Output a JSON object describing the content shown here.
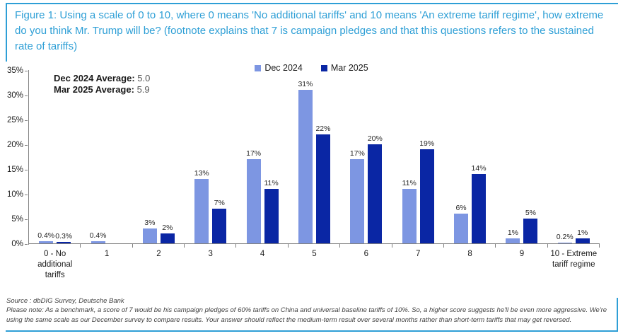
{
  "title": "Figure 1: Using a scale of 0 to 10, where 0 means 'No additional tariffs' and 10 means 'An extreme tariff regime', how extreme do you think Mr. Trump will be? (footnote explains that 7 is campaign pledges and that this questions refers to the sustained rate of tariffs)",
  "averages": {
    "dec_label": "Dec 2024 Average:",
    "dec_value": "5.0",
    "mar_label": "Mar 2025 Average:",
    "mar_value": "5.9"
  },
  "chart_data": {
    "type": "bar",
    "title": "Figure 1: Using a scale of 0 to 10, where 0 means 'No additional tariffs' and 10 means 'An extreme tariff regime', how extreme do you think Mr. Trump will be?",
    "categories": [
      "0 - No\nadditional\ntariffs",
      "1",
      "2",
      "3",
      "4",
      "5",
      "6",
      "7",
      "8",
      "9",
      "10 - Extreme\ntariff regime"
    ],
    "series": [
      {
        "name": "Dec 2024",
        "color": "#7D96E2",
        "values": [
          0.4,
          0.4,
          3,
          13,
          17,
          31,
          17,
          11,
          6,
          1,
          0.2
        ],
        "labels": [
          "0.4%",
          "0.4%",
          "3%",
          "13%",
          "17%",
          "31%",
          "17%",
          "11%",
          "6%",
          "1%",
          "0.2%"
        ]
      },
      {
        "name": "Mar 2025",
        "color": "#0A26A4",
        "values": [
          0.3,
          null,
          2,
          7,
          11,
          22,
          20,
          19,
          14,
          5,
          1
        ],
        "labels": [
          "0.3%",
          null,
          "2%",
          "7%",
          "11%",
          "22%",
          "20%",
          "19%",
          "14%",
          "5%",
          "1%"
        ]
      }
    ],
    "xlabel": "",
    "ylabel": "",
    "ylim": [
      0,
      35
    ],
    "ytick_step": 5,
    "ytick_suffix": "%",
    "grid": false,
    "legend_position": "top-center"
  },
  "footer": {
    "source": "Source : dbDIG Survey, Deutsche Bank",
    "note": "Please note: As a benchmark, a score of 7 would be his campaign pledges of 60% tariffs on China and universal baseline tariffs of 10%. So, a higher score suggests he'll be even more aggressive. We're using the same scale as our December survey to compare results. Your answer should reflect the medium-term result over several months rather than short-term tariffs that may get reversed."
  },
  "colors": {
    "accent_blue": "#2E9FD6",
    "bar_dec_2024": "#7D96E2",
    "bar_mar_2025": "#0A26A4",
    "axis_gray": "#808080"
  }
}
